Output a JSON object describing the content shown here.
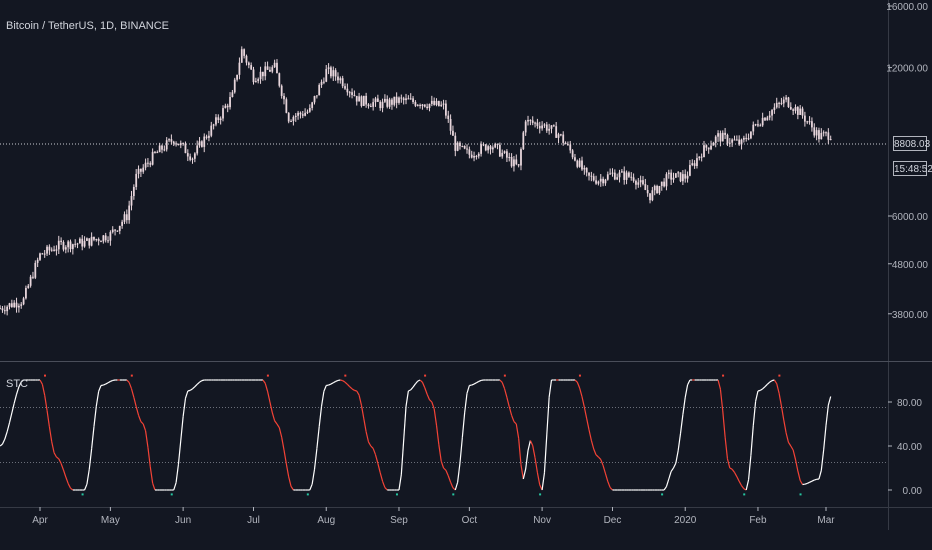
{
  "header": {
    "title": "Bitcoin / TetherUS, 1D, BINANCE"
  },
  "price_tag": {
    "price": "8808.03",
    "countdown": "15:48:52"
  },
  "indicator": {
    "label": "STC"
  },
  "colors": {
    "background": "#131722",
    "candle": "#e8d6dc",
    "stc_up": "#ffffff",
    "stc_down": "#f44336",
    "marker_red": "#f44336",
    "marker_green": "#26c6a0",
    "grid": "#363a45",
    "axis_text": "#b2b5be"
  },
  "chart_data": [
    {
      "type": "candlestick",
      "title": "Bitcoin / TetherUS, 1D, BINANCE",
      "x_ticks": [
        "Apr",
        "May",
        "Jun",
        "Jul",
        "Aug",
        "Sep",
        "Oct",
        "Nov",
        "Dec",
        "2020",
        "Feb",
        "Mar"
      ],
      "y_ticks": [
        "16000.00",
        "12000.00",
        "8808.03",
        "6000.00",
        "4800.00",
        "3800.00"
      ],
      "y_scale": "log",
      "ylim": [
        3300,
        16000
      ],
      "last_price": 8808.03,
      "x": [
        "Mar 15",
        "Mar 25",
        "Apr 1",
        "Apr 10",
        "Apr 20",
        "May 1",
        "May 8",
        "May 12",
        "May 20",
        "May 28",
        "Jun 5",
        "Jun 15",
        "Jun 22",
        "Jun 26",
        "Jul 1",
        "Jul 10",
        "Jul 16",
        "Jul 25",
        "Aug 1",
        "Aug 6",
        "Aug 15",
        "Aug 25",
        "Sep 1",
        "Sep 10",
        "Sep 20",
        "Sep 25",
        "Oct 1",
        "Oct 10",
        "Oct 22",
        "Oct 25",
        "Oct 26",
        "Nov 1",
        "Nov 8",
        "Nov 20",
        "Nov 25",
        "Dec 1",
        "Dec 10",
        "Dec 17",
        "Dec 25",
        "Jan 1",
        "Jan 8",
        "Jan 15",
        "Jan 25",
        "Feb 1",
        "Feb 10",
        "Feb 13",
        "Feb 20",
        "Feb 27",
        "Mar 3"
      ],
      "values": [
        3900,
        4050,
        5000,
        5250,
        5300,
        5500,
        6000,
        7200,
        8000,
        8600,
        7900,
        9300,
        10500,
        13000,
        11500,
        12000,
        9500,
        9800,
        11800,
        11500,
        10300,
        10100,
        10300,
        10200,
        10000,
        8300,
        8000,
        8400,
        7500,
        9500,
        9300,
        9200,
        8800,
        7200,
        7100,
        7300,
        7200,
        6600,
        7200,
        7200,
        8100,
        8700,
        8400,
        9300,
        10100,
        10300,
        9600,
        8700,
        8800
      ]
    },
    {
      "type": "line",
      "title": "STC",
      "y_ticks": [
        "80.00",
        "40.00",
        "0.00"
      ],
      "ylim": [
        -10,
        110
      ],
      "levels": [
        75,
        25
      ],
      "x": [
        "Mar 15",
        "Mar 25",
        "Apr 1",
        "Apr 8",
        "Apr 15",
        "Apr 20",
        "Apr 27",
        "May 3",
        "May 8",
        "May 15",
        "May 20",
        "May 28",
        "Jun 3",
        "Jun 10",
        "Jun 18",
        "Jun 25",
        "Jul 1",
        "Jul 5",
        "Jul 11",
        "Jul 18",
        "Jul 25",
        "Aug 1",
        "Aug 7",
        "Aug 14",
        "Aug 20",
        "Aug 27",
        "Sep 1",
        "Sep 5",
        "Sep 10",
        "Sep 15",
        "Sep 20",
        "Sep 25",
        "Oct 1",
        "Oct 7",
        "Oct 14",
        "Oct 21",
        "Oct 24",
        "Oct 27",
        "Nov 1",
        "Nov 5",
        "Nov 15",
        "Nov 25",
        "Dec 1",
        "Dec 10",
        "Dec 17",
        "Dec 23",
        "Dec 27",
        "Jan 3",
        "Jan 8",
        "Jan 15",
        "Jan 20",
        "Jan 27",
        "Feb 1",
        "Feb 8",
        "Feb 15",
        "Feb 20",
        "Feb 27",
        "Mar 3"
      ],
      "values": [
        40,
        100,
        100,
        30,
        0,
        0,
        95,
        100,
        100,
        60,
        0,
        0,
        90,
        100,
        100,
        100,
        100,
        100,
        60,
        0,
        0,
        95,
        100,
        90,
        40,
        0,
        0,
        90,
        100,
        80,
        20,
        0,
        95,
        100,
        100,
        60,
        10,
        45,
        0,
        100,
        100,
        30,
        0,
        0,
        0,
        0,
        20,
        100,
        100,
        100,
        20,
        0,
        90,
        100,
        40,
        5,
        10,
        85
      ]
    }
  ]
}
